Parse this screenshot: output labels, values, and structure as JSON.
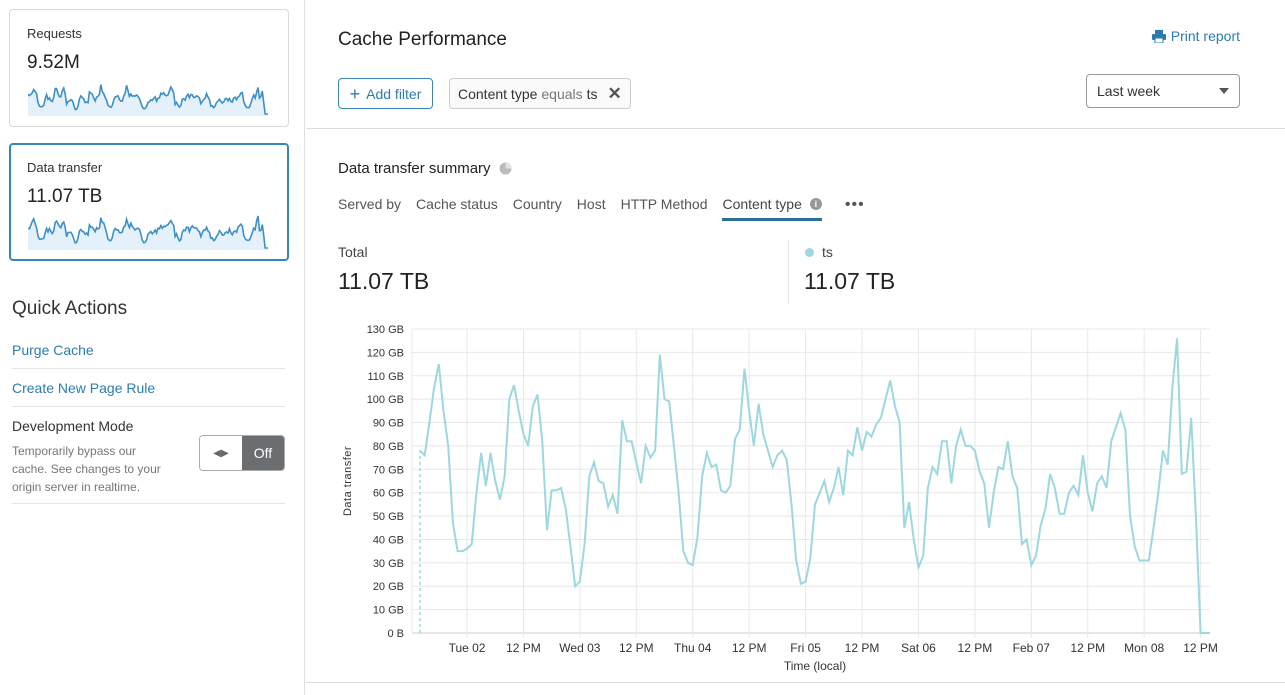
{
  "sidebar": {
    "cards": [
      {
        "label": "Requests",
        "value": "9.52M",
        "selected": false
      },
      {
        "label": "Data transfer",
        "value": "11.07 TB",
        "selected": true
      }
    ],
    "quick_actions": {
      "title": "Quick Actions",
      "links": [
        "Purge Cache",
        "Create New Page Rule"
      ],
      "dev_mode": {
        "title": "Development Mode",
        "description": "Temporarily bypass our cache. See changes to your origin server in realtime.",
        "toggle_state": "Off",
        "toggle_icon": "arrows-left-right-icon"
      }
    }
  },
  "main": {
    "title": "Cache Performance",
    "print_label": "Print report",
    "print_icon": "printer-icon",
    "add_filter_label": "Add filter",
    "filter": {
      "field": "Content type",
      "operator": "equals",
      "value": "ts"
    },
    "time_range": "Last week",
    "summary": {
      "title": "Data transfer summary",
      "tabs": [
        "Served by",
        "Cache status",
        "Country",
        "Host",
        "HTTP Method",
        "Content type"
      ],
      "active_tab": "Content type",
      "more": "•••",
      "total_label": "Total",
      "total_value": "11.07 TB",
      "series_label": "ts",
      "series_value": "11.07 TB"
    }
  },
  "colors": {
    "accent": "#2c7cb0",
    "series": "#9dd7df"
  },
  "chart_data": {
    "type": "line",
    "xlabel": "Time (local)",
    "ylabel": "Data transfer",
    "y_unit": "GB",
    "ylim": [
      0,
      130
    ],
    "y_ticks": [
      "0 B",
      "10 GB",
      "20 GB",
      "30 GB",
      "40 GB",
      "50 GB",
      "60 GB",
      "70 GB",
      "80 GB",
      "90 GB",
      "100 GB",
      "110 GB",
      "120 GB",
      "130 GB"
    ],
    "x_ticks": [
      {
        "label": "Tue 02",
        "day": "Feb 02",
        "hour": 0
      },
      {
        "label": "12 PM",
        "day": "Feb 02",
        "hour": 12
      },
      {
        "label": "Wed 03",
        "day": "Feb 03",
        "hour": 0
      },
      {
        "label": "12 PM",
        "day": "Feb 03",
        "hour": 12
      },
      {
        "label": "Thu 04",
        "day": "Feb 04",
        "hour": 0
      },
      {
        "label": "12 PM",
        "day": "Feb 04",
        "hour": 12
      },
      {
        "label": "Fri 05",
        "day": "Feb 05",
        "hour": 0
      },
      {
        "label": "12 PM",
        "day": "Feb 05",
        "hour": 12
      },
      {
        "label": "Sat 06",
        "day": "Feb 06",
        "hour": 0
      },
      {
        "label": "12 PM",
        "day": "Feb 06",
        "hour": 12
      },
      {
        "label": "Feb 07",
        "day": "Feb 07",
        "hour": 0
      },
      {
        "label": "12 PM",
        "day": "Feb 07",
        "hour": 12
      },
      {
        "label": "Mon 08",
        "day": "Feb 08",
        "hour": 0
      },
      {
        "label": "12 PM",
        "day": "Feb 08",
        "hour": 12
      }
    ],
    "grid": true,
    "legend": "none",
    "series": [
      {
        "name": "ts",
        "color": "#9dd7df",
        "hourly": [
          {
            "day": "Feb 01",
            "first_hour": 14,
            "values": [
              78,
              76,
              90,
              105,
              115,
              95,
              80,
              47,
              35,
              35
            ]
          },
          {
            "day": "Feb 02",
            "first_hour": 0,
            "values": [
              36,
              38,
              60,
              77,
              63,
              77,
              65,
              57,
              67,
              100,
              106,
              95,
              85,
              80,
              97,
              102,
              82,
              44,
              61,
              61,
              62,
              53,
              37,
              20
            ]
          },
          {
            "day": "Feb 03",
            "first_hour": 0,
            "values": [
              22,
              38,
              67,
              73,
              65,
              64,
              54,
              59,
              51,
              91,
              82,
              82,
              73,
              64,
              80,
              75,
              78,
              119,
              100,
              99,
              80,
              60,
              35,
              30
            ]
          },
          {
            "day": "Feb 04",
            "first_hour": 0,
            "values": [
              29,
              41,
              67,
              77,
              71,
              72,
              61,
              60,
              63,
              83,
              87,
              113,
              95,
              80,
              98,
              85,
              78,
              71,
              76,
              78,
              74,
              55,
              31,
              21
            ]
          },
          {
            "day": "Feb 05",
            "first_hour": 0,
            "values": [
              22,
              32,
              55,
              60,
              65,
              56,
              62,
              71,
              59,
              78,
              76,
              88,
              78,
              86,
              84,
              89,
              92,
              100,
              108,
              97,
              90,
              45,
              56,
              40
            ]
          },
          {
            "day": "Feb 06",
            "first_hour": 0,
            "values": [
              28,
              33,
              62,
              71,
              68,
              82,
              82,
              64,
              80,
              87,
              80,
              80,
              78,
              69,
              64,
              45,
              60,
              71,
              70,
              82,
              67,
              62,
              38,
              40
            ]
          },
          {
            "day": "Feb 07",
            "first_hour": 0,
            "values": [
              29,
              33,
              46,
              53,
              68,
              62,
              51,
              51,
              60,
              63,
              59,
              76,
              60,
              52,
              64,
              67,
              62,
              82,
              88,
              94,
              87,
              50,
              37,
              31
            ]
          },
          {
            "day": "Feb 08",
            "first_hour": 0,
            "values": [
              31,
              31,
              45,
              60,
              78,
              72,
              105,
              126,
              68,
              69,
              92,
              50,
              0,
              0,
              0
            ]
          }
        ]
      }
    ]
  }
}
